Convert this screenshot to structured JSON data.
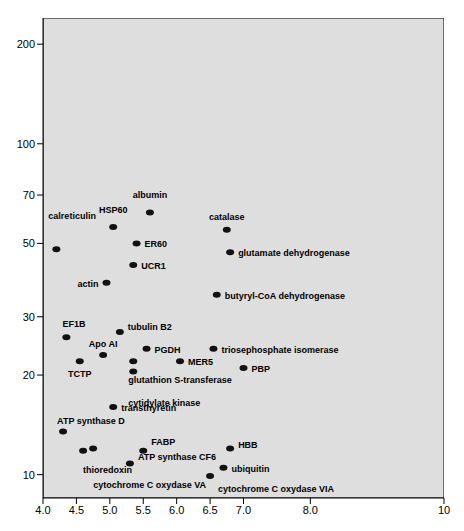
{
  "chart_data": {
    "type": "scatter",
    "log": "y",
    "grid": false,
    "color": "#111111",
    "marker": "circle",
    "xlim": [
      4.0,
      10
    ],
    "xticks": [
      {
        "value": 4.0,
        "label": "4.0"
      },
      4.5,
      {
        "value": 5.0,
        "label": "5.0"
      },
      5.5,
      {
        "value": 6.0,
        "label": "6.0"
      },
      6.5,
      {
        "value": 7.0,
        "label": "7.0"
      },
      {
        "value": 8.0,
        "label": "8.0"
      },
      10
    ],
    "ylim": [
      8.5,
      240
    ],
    "yticks": [
      10,
      20,
      30,
      50,
      70,
      100,
      200
    ],
    "labels": [
      "calreticulin",
      "HSP60",
      "albumin",
      "ER60",
      "catalase",
      "glutamate dehydrogenase",
      "actin",
      "UCR1",
      "butyryl-CoA dehydrogenase",
      "EF1B",
      "tubulin B2",
      "PGDH",
      "triosephosphate isomerase",
      "Apo AI",
      "TCTP",
      "glutathion S-transferase",
      "MER5",
      "cytidylate kinase",
      "PBP",
      "ATP synthase D",
      "transthyretin",
      "FABP",
      "HBB",
      "ubiquitin",
      "ATP synthase CF6",
      "thioredoxin",
      "cytochrome C oxydase VA",
      "cytochrome C oxydase VIA"
    ],
    "x": [
      4.2,
      5.05,
      5.6,
      5.4,
      6.75,
      6.8,
      4.95,
      5.35,
      6.6,
      4.35,
      5.15,
      5.55,
      6.55,
      4.9,
      4.55,
      5.35,
      6.05,
      5.35,
      7.0,
      4.3,
      5.05,
      5.5,
      6.8,
      6.7,
      5.3,
      4.6,
      4.75,
      6.5
    ],
    "values": [
      48,
      56,
      62,
      50,
      55,
      47,
      38,
      43,
      35,
      26,
      27,
      24,
      24,
      23,
      22,
      22,
      22,
      20.5,
      21,
      13.5,
      16,
      11.8,
      12,
      10.5,
      10.8,
      11.8,
      12,
      9.9
    ]
  }
}
